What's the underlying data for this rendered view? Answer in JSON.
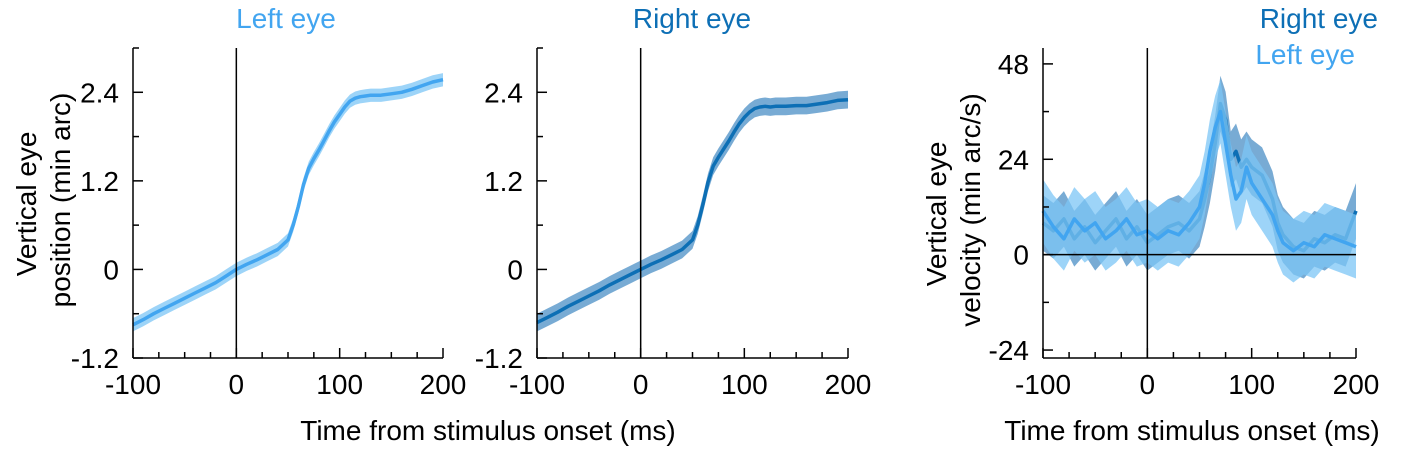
{
  "colors": {
    "left_eye": "#42a5f0",
    "right_eye": "#0d6fb5",
    "left_band": "#7cc6f5",
    "right_band": "#4b8fc6"
  },
  "shared_xlabel": "Time from stimulus onset (ms)",
  "chart_data": [
    {
      "type": "line",
      "title": "Left eye",
      "ylabel_line1": "Vertical eye",
      "ylabel_line2": "position (min arc)",
      "xlim": [
        -100,
        200
      ],
      "ylim": [
        -1.2,
        3.0
      ],
      "xticks": [
        -100,
        0,
        100,
        200
      ],
      "xtick_labels": [
        "-100",
        "0",
        "100",
        "200"
      ],
      "yticks": [
        -1.2,
        0,
        1.2,
        2.4
      ],
      "ytick_labels": [
        "-1.2",
        "0",
        "1.2",
        "2.4"
      ],
      "series": [
        {
          "name": "Left eye",
          "color": "left_eye",
          "x": [
            -100,
            -90,
            -80,
            -70,
            -60,
            -50,
            -40,
            -30,
            -20,
            -10,
            0,
            10,
            20,
            30,
            40,
            50,
            55,
            60,
            65,
            70,
            75,
            80,
            85,
            90,
            95,
            100,
            105,
            110,
            115,
            120,
            125,
            130,
            140,
            150,
            160,
            170,
            180,
            190,
            200
          ],
          "y": [
            -0.75,
            -0.68,
            -0.6,
            -0.53,
            -0.46,
            -0.39,
            -0.32,
            -0.25,
            -0.18,
            -0.09,
            0.0,
            0.07,
            0.13,
            0.2,
            0.27,
            0.4,
            0.6,
            0.85,
            1.15,
            1.37,
            1.5,
            1.62,
            1.75,
            1.88,
            2.0,
            2.1,
            2.2,
            2.28,
            2.32,
            2.34,
            2.35,
            2.36,
            2.36,
            2.38,
            2.4,
            2.44,
            2.49,
            2.54,
            2.57
          ],
          "band": 0.09
        }
      ]
    },
    {
      "type": "line",
      "title": "Right eye",
      "xlim": [
        -100,
        200
      ],
      "ylim": [
        -1.2,
        3.0
      ],
      "xticks": [
        -100,
        0,
        100,
        200
      ],
      "xtick_labels": [
        "-100",
        "0",
        "100",
        "200"
      ],
      "yticks": [
        -1.2,
        0,
        1.2,
        2.4
      ],
      "ytick_labels": [
        "-1.2",
        "0",
        "1.2",
        "2.4"
      ],
      "series": [
        {
          "name": "Right eye",
          "color": "right_eye",
          "x": [
            -100,
            -90,
            -80,
            -70,
            -60,
            -50,
            -40,
            -30,
            -20,
            -10,
            0,
            10,
            20,
            30,
            40,
            50,
            55,
            60,
            65,
            70,
            75,
            80,
            85,
            90,
            95,
            100,
            105,
            110,
            115,
            120,
            125,
            130,
            140,
            150,
            160,
            170,
            180,
            190,
            200
          ],
          "y": [
            -0.72,
            -0.65,
            -0.58,
            -0.5,
            -0.43,
            -0.36,
            -0.29,
            -0.21,
            -0.14,
            -0.07,
            0.0,
            0.07,
            0.13,
            0.2,
            0.27,
            0.4,
            0.6,
            0.88,
            1.18,
            1.4,
            1.52,
            1.63,
            1.74,
            1.86,
            1.97,
            2.06,
            2.13,
            2.18,
            2.2,
            2.21,
            2.2,
            2.21,
            2.21,
            2.22,
            2.22,
            2.24,
            2.26,
            2.29,
            2.3
          ],
          "band": 0.12
        }
      ]
    },
    {
      "type": "line",
      "title": "",
      "ylabel_line1": "Vertical eye",
      "ylabel_line2": "velocity (min arc/s)",
      "xlim": [
        -100,
        200
      ],
      "ylim": [
        -26,
        52
      ],
      "xticks": [
        -100,
        0,
        100,
        200
      ],
      "xtick_labels": [
        "-100",
        "0",
        "100",
        "200"
      ],
      "yticks": [
        -24,
        0,
        24,
        48
      ],
      "ytick_labels": [
        "-24",
        "0",
        "24",
        "48"
      ],
      "legend": [
        "Right eye",
        "Left eye"
      ],
      "series": [
        {
          "name": "Right eye",
          "color": "right_eye",
          "x": [
            -100,
            -90,
            -80,
            -70,
            -60,
            -50,
            -40,
            -30,
            -20,
            -10,
            0,
            10,
            20,
            30,
            40,
            50,
            55,
            60,
            65,
            70,
            75,
            80,
            85,
            90,
            95,
            100,
            110,
            120,
            125,
            130,
            140,
            150,
            160,
            170,
            180,
            190,
            200
          ],
          "y": [
            8,
            6,
            9,
            4,
            7,
            3,
            6,
            9,
            4,
            7,
            3,
            5,
            7,
            8,
            6,
            9,
            14,
            20,
            28,
            38,
            34,
            24,
            26,
            22,
            24,
            22,
            20,
            14,
            8,
            5,
            2,
            1,
            4,
            3,
            5,
            4,
            11
          ],
          "band": 7
        },
        {
          "name": "Left eye",
          "color": "left_eye",
          "x": [
            -100,
            -90,
            -80,
            -70,
            -60,
            -50,
            -40,
            -30,
            -20,
            -10,
            0,
            10,
            20,
            30,
            40,
            50,
            55,
            60,
            65,
            70,
            75,
            80,
            85,
            90,
            95,
            100,
            110,
            120,
            125,
            130,
            140,
            150,
            160,
            170,
            180,
            190,
            200
          ],
          "y": [
            11,
            7,
            4,
            9,
            6,
            8,
            4,
            6,
            9,
            5,
            6,
            4,
            6,
            5,
            8,
            12,
            18,
            26,
            32,
            36,
            28,
            20,
            14,
            16,
            22,
            18,
            14,
            10,
            6,
            3,
            1,
            3,
            2,
            5,
            4,
            3,
            2
          ],
          "band": 8
        }
      ]
    }
  ]
}
